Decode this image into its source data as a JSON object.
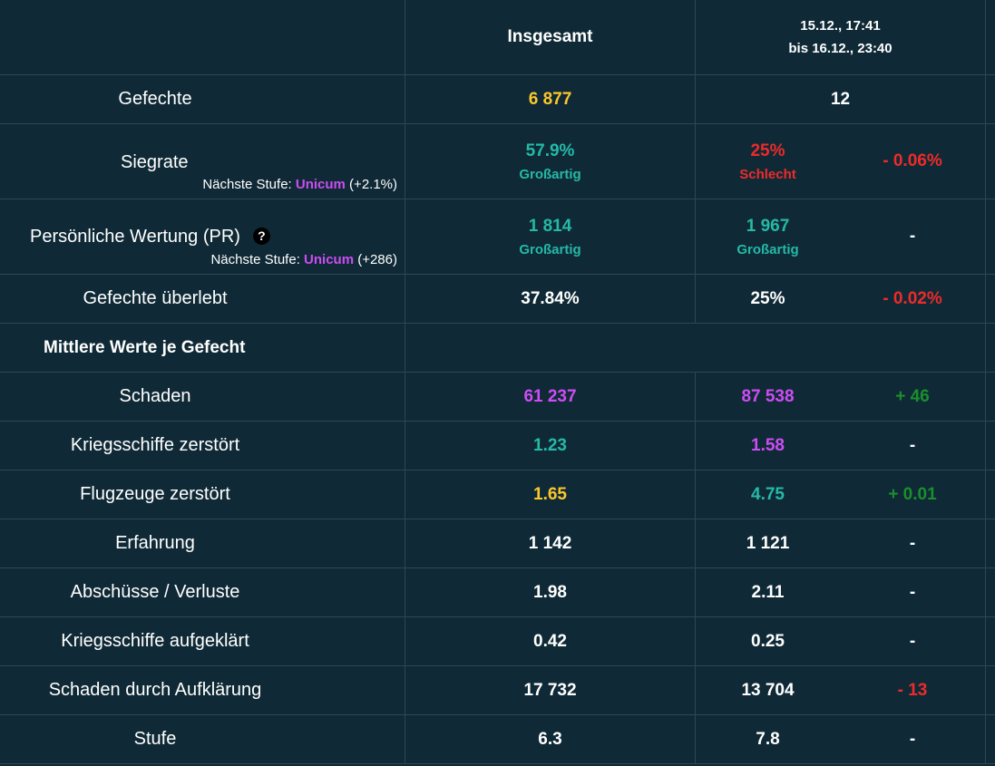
{
  "header": {
    "overall_label": "Insgesamt",
    "period_line1": "15.12., 17:41",
    "period_line2": "bis 16.12., 23:40"
  },
  "colors": {
    "background": "#0f2a36",
    "grid": "#2c4854",
    "yellow": "#fcc72e",
    "teal": "#25b9a7",
    "purple": "#cd4cf4",
    "red": "#ee2a2a",
    "green": "#1a8f2c"
  },
  "rows": {
    "battles": {
      "label": "Gefechte",
      "overall": "6 877",
      "period": "12",
      "diff": ""
    },
    "winrate": {
      "label": "Siegrate",
      "next_prefix": "Nächste Stufe: ",
      "next_tier": "Unicum",
      "next_delta": " (+2.1%)",
      "overall": "57.9%",
      "overall_rating": "Großartig",
      "period": "25%",
      "period_rating": "Schlecht",
      "diff": "- 0.06%"
    },
    "pr": {
      "label": "Persönliche Wertung (PR)",
      "help_icon": "question-circle-icon",
      "help_glyph": "?",
      "next_prefix": "Nächste Stufe: ",
      "next_tier": "Unicum",
      "next_delta": " (+286)",
      "overall": "1 814",
      "overall_rating": "Großartig",
      "period": "1 967",
      "period_rating": "Großartig",
      "diff": "-"
    },
    "survived": {
      "label": "Gefechte überlebt",
      "overall": "37.84%",
      "period": "25%",
      "diff": "- 0.02%"
    }
  },
  "average_section": {
    "title": "Mittlere Werte je Gefecht",
    "rows": [
      {
        "label": "Schaden",
        "overall": "61 237",
        "overall_color": "purple",
        "period": "87 538",
        "period_color": "purple",
        "diff": "+ 46",
        "diff_color": "green"
      },
      {
        "label": "Kriegsschiffe zerstört",
        "overall": "1.23",
        "overall_color": "teal",
        "period": "1.58",
        "period_color": "purple",
        "diff": "-",
        "diff_color": "white"
      },
      {
        "label": "Flugzeuge zerstört",
        "overall": "1.65",
        "overall_color": "yellow",
        "period": "4.75",
        "period_color": "teal",
        "diff": "+ 0.01",
        "diff_color": "green"
      },
      {
        "label": "Erfahrung",
        "overall": "1 142",
        "overall_color": "white",
        "period": "1 121",
        "period_color": "white",
        "diff": "-",
        "diff_color": "white"
      },
      {
        "label": "Abschüsse / Verluste",
        "overall": "1.98",
        "overall_color": "white",
        "period": "2.11",
        "period_color": "white",
        "diff": "-",
        "diff_color": "white"
      },
      {
        "label": "Kriegsschiffe aufgeklärt",
        "overall": "0.42",
        "overall_color": "white",
        "period": "0.25",
        "period_color": "white",
        "diff": "-",
        "diff_color": "white"
      },
      {
        "label": "Schaden durch Aufklärung",
        "overall": "17 732",
        "overall_color": "white",
        "period": "13 704",
        "period_color": "white",
        "diff": "- 13",
        "diff_color": "red"
      },
      {
        "label": "Stufe",
        "overall": "6.3",
        "overall_color": "white",
        "period": "7.8",
        "period_color": "white",
        "diff": "-",
        "diff_color": "white"
      }
    ]
  }
}
